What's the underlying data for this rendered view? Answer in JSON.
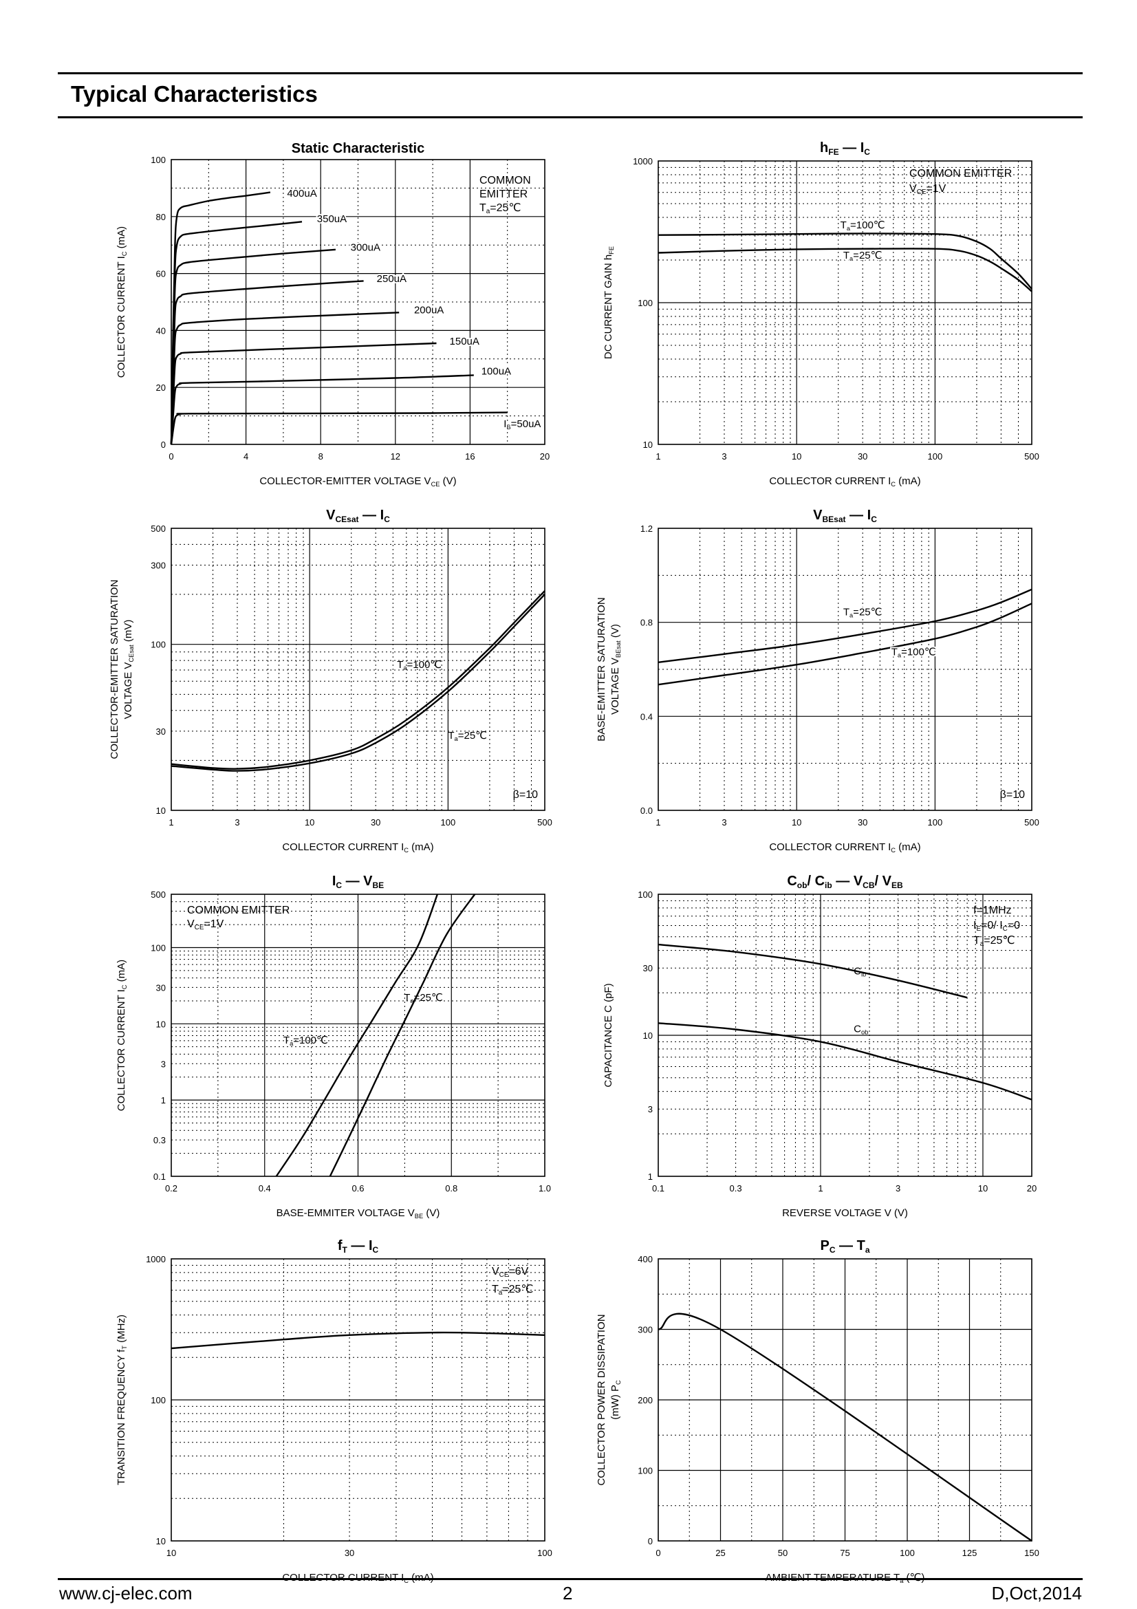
{
  "page": {
    "heading": "Typical Characteristics"
  },
  "footer": {
    "website": "www.cj-elec.com",
    "page_number": "2",
    "revision": "D,Oct,2014"
  },
  "chart_data": [
    {
      "id": "static",
      "type": "line",
      "title": "Static Characteristic",
      "xlabel": "COLLECTOR-EMITTER VOLTAGE",
      "xlabel_sym": "V",
      "xlabel_sub": "CE",
      "xlabel_unit": "(V)",
      "ylabel": "COLLECTOR CURRENT",
      "ylabel_sym": "I",
      "ylabel_sub": "C",
      "ylabel_unit": "(mA)",
      "x_scale": "linear",
      "y_scale": "linear",
      "xlim": [
        0,
        20
      ],
      "ylim": [
        0,
        100
      ],
      "x_ticks": [
        0,
        4,
        8,
        12,
        16,
        20
      ],
      "y_ticks": [
        0,
        20,
        40,
        60,
        80,
        100
      ],
      "x_grid_major": [
        4,
        8,
        12,
        16
      ],
      "x_grid_minor": [
        2,
        6,
        10,
        14,
        18
      ],
      "y_grid_major": [
        20,
        40,
        60,
        80
      ],
      "y_grid_minor": [
        10,
        30,
        50,
        70,
        90
      ],
      "conditions": [
        "COMMON",
        "EMITTER",
        "Ta=25℃"
      ],
      "series": [
        {
          "name": "400uA",
          "x": [
            0,
            0.1,
            0.2,
            0.3,
            0.5,
            1,
            2,
            3,
            4,
            5.3
          ],
          "y": [
            0,
            40,
            70,
            80,
            83,
            84,
            85.5,
            86.5,
            87.3,
            88.5
          ]
        },
        {
          "name": "350uA",
          "x": [
            0,
            0.1,
            0.2,
            0.3,
            0.5,
            1,
            3,
            5,
            7
          ],
          "y": [
            0,
            35,
            62,
            70,
            73,
            74,
            75.5,
            76.8,
            78.2
          ]
        },
        {
          "name": "300uA",
          "x": [
            0,
            0.1,
            0.2,
            0.3,
            0.5,
            1,
            3,
            6,
            8.8
          ],
          "y": [
            0,
            30,
            55,
            61,
            63,
            64,
            65.3,
            67,
            68.4
          ]
        },
        {
          "name": "250uA",
          "x": [
            0,
            0.1,
            0.2,
            0.3,
            0.5,
            1,
            4,
            7,
            10.3
          ],
          "y": [
            0,
            25,
            46,
            50.5,
            52,
            53,
            54.6,
            56,
            57.4
          ]
        },
        {
          "name": "200uA",
          "x": [
            0,
            0.1,
            0.2,
            0.3,
            0.5,
            1,
            4,
            8,
            12.2
          ],
          "y": [
            0,
            20,
            37,
            40.5,
            42,
            42.7,
            44,
            45.2,
            46.3
          ]
        },
        {
          "name": "150uA",
          "x": [
            0,
            0.1,
            0.2,
            0.3,
            0.5,
            1,
            5,
            10,
            14.2
          ],
          "y": [
            0,
            15,
            28,
            30.8,
            31.8,
            32.3,
            33.3,
            34.5,
            35.5
          ]
        },
        {
          "name": "100uA",
          "x": [
            0,
            0.1,
            0.2,
            0.3,
            0.5,
            1,
            6,
            12,
            16.2
          ],
          "y": [
            0,
            10,
            18.5,
            20.5,
            21.3,
            21.6,
            22.3,
            23.3,
            24.3
          ]
        },
        {
          "name": "IB=50uA",
          "x": [
            0,
            0.1,
            0.2,
            0.3,
            0.5,
            1,
            8,
            14,
            18
          ],
          "y": [
            0,
            5,
            9,
            10.2,
            10.6,
            10.8,
            10.9,
            11,
            11.2
          ]
        }
      ]
    },
    {
      "id": "hfe",
      "type": "line",
      "title_parts": [
        "h",
        "FE",
        "—",
        "I",
        "C"
      ],
      "xlabel": "COLLECTOR CURRENT",
      "xlabel_sym": "I",
      "xlabel_sub": "C",
      "xlabel_unit": "(mA)",
      "ylabel": "DC CURRENT GAIN",
      "ylabel_sym": "h",
      "ylabel_sub": "FE",
      "ylabel_unit": "",
      "x_scale": "log",
      "y_scale": "log",
      "xlim": [
        1,
        500
      ],
      "ylim": [
        10,
        1000
      ],
      "x_ticks": [
        1,
        3,
        10,
        30,
        100,
        500
      ],
      "y_ticks": [
        10,
        100,
        1000
      ],
      "conditions": [
        "COMMON EMITTER",
        "VCE=1V"
      ],
      "series": [
        {
          "name": "Ta=100℃",
          "x": [
            1,
            3,
            10,
            30,
            100,
            150,
            200,
            250,
            300,
            400,
            500
          ],
          "y": [
            300,
            302,
            305,
            308,
            305,
            295,
            270,
            240,
            205,
            160,
            125
          ]
        },
        {
          "name": "Ta=25℃",
          "x": [
            1,
            3,
            10,
            30,
            100,
            150,
            200,
            250,
            300,
            400,
            500
          ],
          "y": [
            225,
            232,
            238,
            240,
            240,
            232,
            215,
            195,
            175,
            145,
            120
          ]
        }
      ]
    },
    {
      "id": "vcesat",
      "type": "line",
      "title_parts": [
        "V",
        "CEsat",
        "—",
        "I",
        "C"
      ],
      "xlabel": "COLLECTOR CURRENT",
      "xlabel_sym": "I",
      "xlabel_sub": "C",
      "xlabel_unit": "(mA)",
      "ylabel": "COLLECTOR-EMITTER SATURATION",
      "ylabel2": "VOLTAGE",
      "ylabel_sym": "V",
      "ylabel_sub": "CEsat",
      "ylabel_unit": "(mV)",
      "x_scale": "log",
      "y_scale": "log",
      "xlim": [
        1,
        500
      ],
      "ylim": [
        10,
        500
      ],
      "x_ticks": [
        1,
        3,
        10,
        30,
        100,
        500
      ],
      "y_ticks": [
        10,
        30,
        100,
        300,
        500
      ],
      "conditions": [
        "β=10"
      ],
      "series": [
        {
          "name": "Ta=100℃",
          "x": [
            1,
            2,
            3,
            5,
            10,
            20,
            30,
            50,
            100,
            200,
            300,
            500
          ],
          "y": [
            19,
            18,
            17.8,
            18.3,
            20,
            23,
            27,
            35,
            55,
            95,
            135,
            210
          ]
        },
        {
          "name": "Ta=25℃",
          "x": [
            1,
            2,
            3,
            5,
            10,
            20,
            30,
            50,
            100,
            200,
            300,
            500
          ],
          "y": [
            18.5,
            17.6,
            17.3,
            17.7,
            19.2,
            22,
            25.5,
            33,
            52,
            90,
            128,
            200
          ]
        }
      ]
    },
    {
      "id": "vbesat",
      "type": "line",
      "title_parts": [
        "V",
        "BEsat",
        "—",
        "I",
        "C"
      ],
      "xlabel": "COLLECTOR CURRENT",
      "xlabel_sym": "I",
      "xlabel_sub": "C",
      "xlabel_unit": "(mA)",
      "ylabel": "BASE-EMITTER SATURATION",
      "ylabel2": "VOLTAGE",
      "ylabel_sym": "V",
      "ylabel_sub": "BEsat",
      "ylabel_unit": "(V)",
      "x_scale": "log",
      "y_scale": "linear",
      "xlim": [
        1,
        500
      ],
      "ylim": [
        0,
        1.2
      ],
      "x_ticks": [
        1,
        3,
        10,
        30,
        100,
        500
      ],
      "y_ticks": [
        0.0,
        0.4,
        0.8,
        1.2
      ],
      "y_tick_labels": [
        "0.0",
        "0.4",
        "0.8",
        "1.2"
      ],
      "conditions": [
        "β=10"
      ],
      "series": [
        {
          "name": "Ta=25℃",
          "x": [
            1,
            3,
            10,
            30,
            100,
            200,
            300,
            500
          ],
          "y": [
            0.63,
            0.665,
            0.705,
            0.75,
            0.805,
            0.85,
            0.885,
            0.94
          ]
        },
        {
          "name": "Ta=100℃",
          "x": [
            1,
            3,
            10,
            30,
            100,
            200,
            300,
            500
          ],
          "y": [
            0.535,
            0.575,
            0.62,
            0.67,
            0.73,
            0.78,
            0.82,
            0.88
          ]
        }
      ]
    },
    {
      "id": "icvbe",
      "type": "line",
      "title_parts": [
        "I",
        "C",
        "—",
        "V",
        "BE"
      ],
      "xlabel": "BASE-EMMITER VOLTAGE",
      "xlabel_sym": "V",
      "xlabel_sub": "BE",
      "xlabel_unit": "(V)",
      "ylabel": "COLLECTOR CURRENT",
      "ylabel_sym": "I",
      "ylabel_sub": "C",
      "ylabel_unit": "(mA)",
      "x_scale": "linear",
      "y_scale": "log",
      "xlim": [
        0.2,
        1.0
      ],
      "ylim": [
        0.1,
        500
      ],
      "x_ticks": [
        0.2,
        0.4,
        0.6,
        0.8,
        1.0
      ],
      "x_tick_labels": [
        "0.2",
        "0.4",
        "0.6",
        "0.8",
        "1.0"
      ],
      "y_ticks": [
        0.1,
        0.3,
        1,
        3,
        10,
        30,
        100,
        500
      ],
      "conditions": [
        "COMMON EMITTER",
        "VCE=1V"
      ],
      "series": [
        {
          "name": "Ta=100℃",
          "x": [
            0.425,
            0.48,
            0.53,
            0.58,
            0.63,
            0.68,
            0.73,
            0.77
          ],
          "y": [
            0.1,
            0.32,
            1.05,
            3.5,
            11,
            35,
            110,
            500
          ]
        },
        {
          "name": "Ta=25℃",
          "x": [
            0.54,
            0.58,
            0.62,
            0.66,
            0.7,
            0.74,
            0.79,
            0.85
          ],
          "y": [
            0.1,
            0.32,
            1.05,
            3.5,
            11,
            35,
            150,
            500
          ]
        }
      ]
    },
    {
      "id": "capacitance",
      "type": "line",
      "title_parts": [
        "C",
        "ob",
        "/ C",
        "ib",
        "—",
        "V",
        "CB",
        "/ V",
        "EB"
      ],
      "xlabel": "REVERSE VOLTAGE",
      "xlabel_sym": "V",
      "xlabel_sub": "",
      "xlabel_unit": "(V)",
      "ylabel": "CAPACITANCE",
      "ylabel_sym": "C",
      "ylabel_sub": "",
      "ylabel_unit": "(pF)",
      "x_scale": "log",
      "y_scale": "log",
      "xlim": [
        0.1,
        20
      ],
      "ylim": [
        1,
        100
      ],
      "x_ticks": [
        0.1,
        0.3,
        1,
        3,
        10,
        20
      ],
      "x_tick_labels": [
        "0.1",
        "0.3",
        "1",
        "3",
        "10",
        "20"
      ],
      "y_ticks": [
        1,
        3,
        10,
        30,
        100
      ],
      "conditions": [
        "f=1MHz",
        "IE=0/ IC=0",
        "Ta=25℃"
      ],
      "series": [
        {
          "name": "Cib",
          "x": [
            0.1,
            0.3,
            1,
            3,
            8
          ],
          "y": [
            44,
            39,
            32,
            24.5,
            18.5
          ]
        },
        {
          "name": "Cob",
          "x": [
            0.1,
            0.3,
            1,
            3,
            10,
            20
          ],
          "y": [
            12.2,
            11,
            9,
            6.5,
            4.6,
            3.5
          ]
        }
      ]
    },
    {
      "id": "ft",
      "type": "line",
      "title_parts": [
        "f",
        "T",
        "—",
        "I",
        "C"
      ],
      "xlabel": "COLLECTOR CURRENT",
      "xlabel_sym": "I",
      "xlabel_sub": "C",
      "xlabel_unit": "(mA)",
      "ylabel": "TRANSITION FREQUENCY",
      "ylabel_sym": "f",
      "ylabel_sub": "T",
      "ylabel_unit": "(MHz)",
      "x_scale": "log",
      "y_scale": "log",
      "xlim": [
        10,
        100
      ],
      "ylim": [
        10,
        1000
      ],
      "x_ticks": [
        10,
        30,
        100
      ],
      "y_ticks": [
        10,
        100,
        1000
      ],
      "conditions": [
        "VCE=6V",
        "Ta=25℃"
      ],
      "series": [
        {
          "name": "",
          "x": [
            10,
            20,
            30,
            50,
            70,
            100
          ],
          "y": [
            232,
            268,
            288,
            300,
            297,
            288
          ]
        }
      ]
    },
    {
      "id": "pc",
      "type": "line",
      "title_parts": [
        "P",
        "C",
        "—",
        "T",
        "a"
      ],
      "xlabel": "AMBIENT TEMPERATURE",
      "xlabel_sym": "T",
      "xlabel_sub": "a",
      "xlabel_unit": "(℃)",
      "ylabel": "COLLECTOR POWER DISSIPATION",
      "ylabel2": "(mW)",
      "ylabel_sym": "P",
      "ylabel_sub": "C",
      "ylabel_unit": "",
      "x_scale": "linear",
      "y_scale": "linear",
      "xlim": [
        0,
        150
      ],
      "ylim": [
        0,
        400
      ],
      "x_ticks": [
        0,
        25,
        50,
        75,
        100,
        125,
        150
      ],
      "y_ticks": [
        0,
        100,
        200,
        300,
        400
      ],
      "conditions": [],
      "series": [
        {
          "name": "",
          "x": [
            0,
            25,
            150
          ],
          "y": [
            300,
            300,
            0
          ]
        }
      ]
    }
  ]
}
